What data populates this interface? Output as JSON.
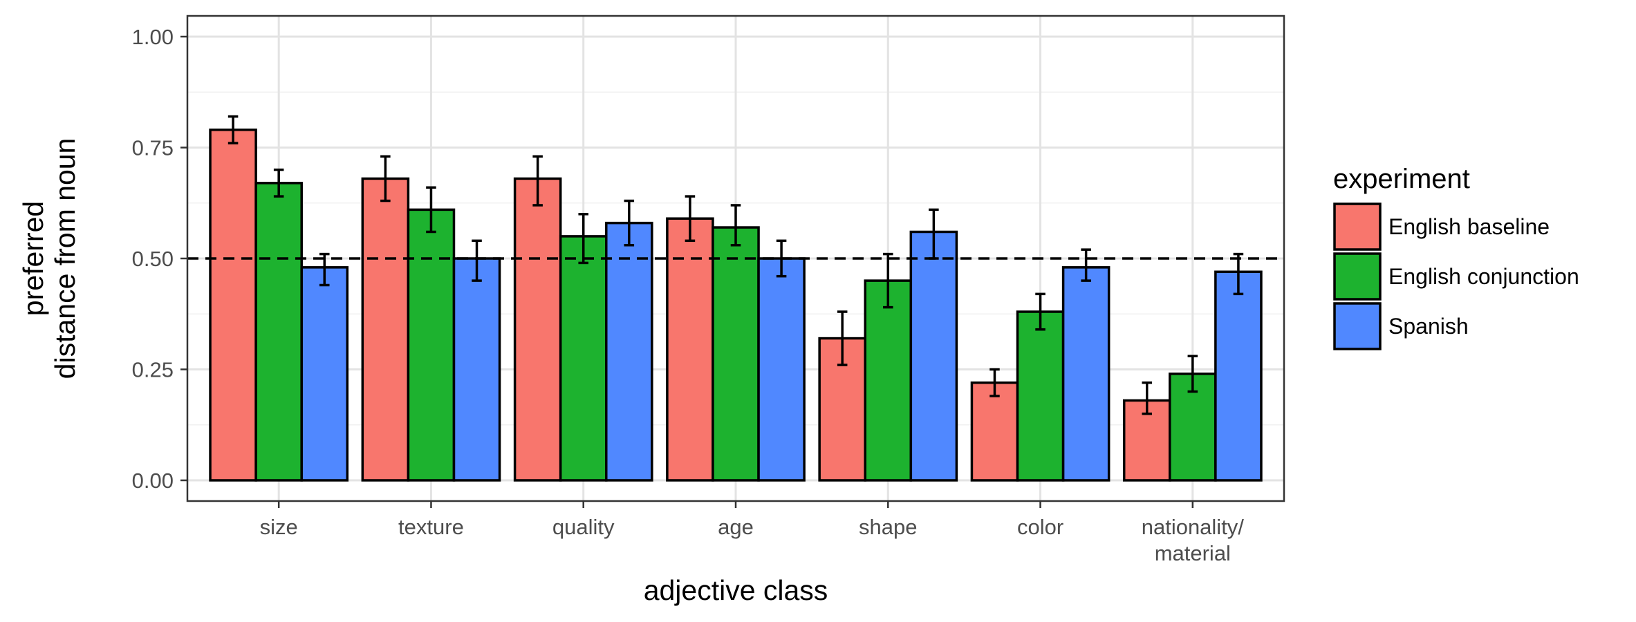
{
  "chart_data": {
    "type": "bar",
    "xlabel": "adjective class",
    "ylabel": [
      "preferred",
      "distance from noun"
    ],
    "ylim": [
      0,
      1
    ],
    "yticks": [
      "0.00",
      "0.25",
      "0.50",
      "0.75",
      "1.00"
    ],
    "categories": [
      [
        "size"
      ],
      [
        "texture"
      ],
      [
        "quality"
      ],
      [
        "age"
      ],
      [
        "shape"
      ],
      [
        "color"
      ],
      [
        "nationality/",
        "material"
      ]
    ],
    "reference_line": 0.5,
    "grid": true,
    "legend_title": "experiment",
    "legend_position": "right",
    "series": [
      {
        "name": "English baseline",
        "color": "#F8766D",
        "values": [
          0.79,
          0.68,
          0.68,
          0.59,
          0.32,
          0.22,
          0.18
        ],
        "err_low": [
          0.76,
          0.63,
          0.62,
          0.54,
          0.26,
          0.19,
          0.15
        ],
        "err_high": [
          0.82,
          0.73,
          0.73,
          0.64,
          0.38,
          0.25,
          0.22
        ]
      },
      {
        "name": "English conjunction",
        "color": "#1DB22F",
        "values": [
          0.67,
          0.61,
          0.55,
          0.57,
          0.45,
          0.38,
          0.24
        ],
        "err_low": [
          0.64,
          0.56,
          0.49,
          0.53,
          0.39,
          0.34,
          0.2
        ],
        "err_high": [
          0.7,
          0.66,
          0.6,
          0.62,
          0.51,
          0.42,
          0.28
        ]
      },
      {
        "name": "Spanish",
        "color": "#5088FF",
        "values": [
          0.48,
          0.5,
          0.58,
          0.5,
          0.56,
          0.48,
          0.47
        ],
        "err_low": [
          0.44,
          0.45,
          0.53,
          0.46,
          0.5,
          0.45,
          0.42
        ],
        "err_high": [
          0.51,
          0.54,
          0.63,
          0.54,
          0.61,
          0.52,
          0.51
        ]
      }
    ]
  }
}
